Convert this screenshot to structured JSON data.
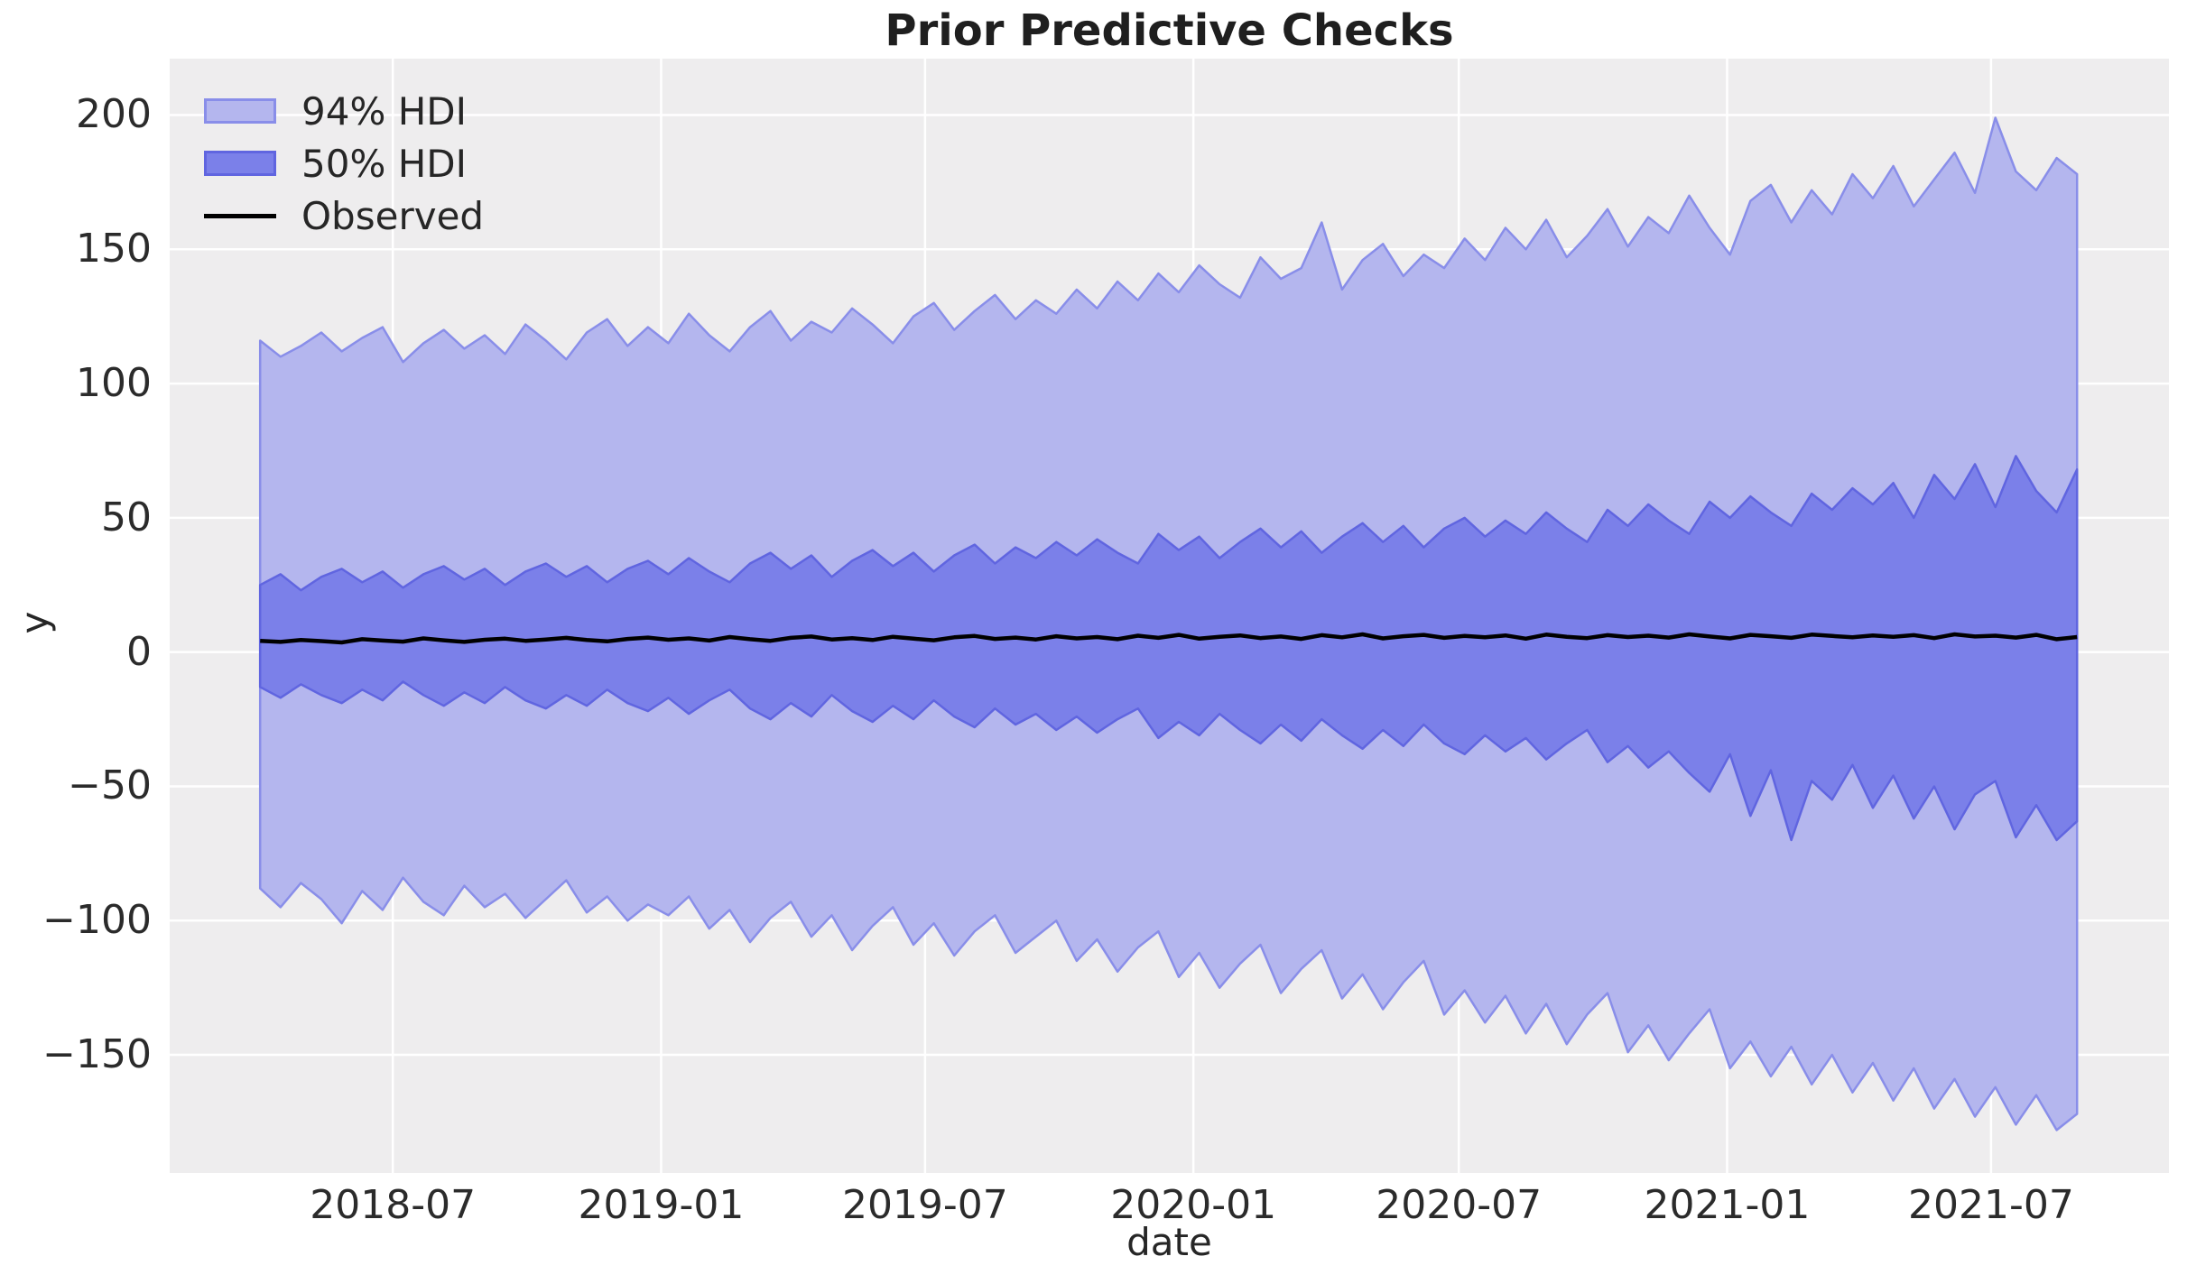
{
  "chart_data": {
    "type": "area",
    "title": "Prior Predictive Checks",
    "xlabel": "date",
    "ylabel": "y",
    "x_start_date": "2018-04-01",
    "x_step_days": 14,
    "x_days": [
      0,
      14,
      28,
      42,
      56,
      70,
      84,
      98,
      112,
      126,
      140,
      154,
      168,
      182,
      196,
      210,
      224,
      238,
      252,
      266,
      280,
      294,
      308,
      322,
      336,
      350,
      364,
      378,
      392,
      406,
      420,
      434,
      448,
      462,
      476,
      490,
      504,
      518,
      532,
      546,
      560,
      574,
      588,
      602,
      616,
      630,
      644,
      658,
      672,
      686,
      700,
      714,
      728,
      742,
      756,
      770,
      784,
      798,
      812,
      826,
      840,
      854,
      868,
      882,
      896,
      910,
      924,
      938,
      952,
      966,
      980,
      994,
      1008,
      1022,
      1036,
      1050,
      1064,
      1078,
      1092,
      1106,
      1120,
      1134,
      1148,
      1162,
      1176,
      1190,
      1204,
      1218,
      1232,
      1246
    ],
    "xlim_days": [
      -62,
      1309
    ],
    "ylim": [
      -194,
      221
    ],
    "grid": true,
    "legend_position": "upper left",
    "x_ticks": [
      {
        "label": "2018-07",
        "day": 91
      },
      {
        "label": "2019-01",
        "day": 275
      },
      {
        "label": "2019-07",
        "day": 456
      },
      {
        "label": "2020-01",
        "day": 640
      },
      {
        "label": "2020-07",
        "day": 822
      },
      {
        "label": "2021-01",
        "day": 1006
      },
      {
        "label": "2021-07",
        "day": 1187
      }
    ],
    "y_ticks": [
      {
        "label": "200",
        "value": 200
      },
      {
        "label": "150",
        "value": 150
      },
      {
        "label": "100",
        "value": 100
      },
      {
        "label": "50",
        "value": 50
      },
      {
        "label": "0",
        "value": 0
      },
      {
        "label": "−50",
        "value": -50
      },
      {
        "label": "−100",
        "value": -100
      },
      {
        "label": "−150",
        "value": -150
      }
    ],
    "series": [
      {
        "name": "94% HDI",
        "kind": "band",
        "fill": "#b4b6ee",
        "edge": "#898ee9",
        "upper": [
          116,
          110,
          114,
          119,
          112,
          117,
          121,
          108,
          115,
          120,
          113,
          118,
          111,
          122,
          116,
          109,
          119,
          124,
          114,
          121,
          115,
          126,
          118,
          112,
          121,
          127,
          116,
          123,
          119,
          128,
          122,
          115,
          125,
          130,
          120,
          127,
          133,
          124,
          131,
          126,
          135,
          128,
          138,
          131,
          141,
          134,
          144,
          137,
          132,
          147,
          139,
          143,
          160,
          135,
          146,
          152,
          140,
          148,
          143,
          154,
          146,
          158,
          150,
          161,
          147,
          155,
          165,
          151,
          162,
          156,
          170,
          158,
          148,
          168,
          174,
          160,
          172,
          163,
          178,
          169,
          181,
          166,
          176,
          186,
          171,
          199,
          179,
          172,
          184,
          178
        ],
        "lower": [
          -88,
          -95,
          -86,
          -92,
          -101,
          -89,
          -96,
          -84,
          -93,
          -98,
          -87,
          -95,
          -90,
          -99,
          -92,
          -85,
          -97,
          -91,
          -100,
          -94,
          -98,
          -91,
          -103,
          -96,
          -108,
          -99,
          -93,
          -106,
          -98,
          -111,
          -102,
          -95,
          -109,
          -101,
          -113,
          -104,
          -98,
          -112,
          -106,
          -100,
          -115,
          -107,
          -119,
          -110,
          -104,
          -121,
          -112,
          -125,
          -116,
          -109,
          -127,
          -118,
          -111,
          -129,
          -120,
          -133,
          -123,
          -115,
          -135,
          -126,
          -138,
          -128,
          -142,
          -131,
          -146,
          -135,
          -127,
          -149,
          -139,
          -152,
          -142,
          -133,
          -155,
          -145,
          -158,
          -147,
          -161,
          -150,
          -164,
          -153,
          -167,
          -155,
          -170,
          -159,
          -173,
          -162,
          -176,
          -165,
          -178,
          -172
        ]
      },
      {
        "name": "50% HDI",
        "kind": "band",
        "fill": "#7b80e9",
        "edge": "#6065e0",
        "upper": [
          25,
          29,
          23,
          28,
          31,
          26,
          30,
          24,
          29,
          32,
          27,
          31,
          25,
          30,
          33,
          28,
          32,
          26,
          31,
          34,
          29,
          35,
          30,
          26,
          33,
          37,
          31,
          36,
          28,
          34,
          38,
          32,
          37,
          30,
          36,
          40,
          33,
          39,
          35,
          41,
          36,
          42,
          37,
          33,
          44,
          38,
          43,
          35,
          41,
          46,
          39,
          45,
          37,
          43,
          48,
          41,
          47,
          39,
          46,
          50,
          43,
          49,
          44,
          52,
          46,
          41,
          53,
          47,
          55,
          49,
          44,
          56,
          50,
          58,
          52,
          47,
          59,
          53,
          61,
          55,
          63,
          50,
          66,
          57,
          70,
          54,
          73,
          60,
          52,
          68
        ],
        "lower": [
          -13,
          -17,
          -12,
          -16,
          -19,
          -14,
          -18,
          -11,
          -16,
          -20,
          -15,
          -19,
          -13,
          -18,
          -21,
          -16,
          -20,
          -14,
          -19,
          -22,
          -17,
          -23,
          -18,
          -14,
          -21,
          -25,
          -19,
          -24,
          -16,
          -22,
          -26,
          -20,
          -25,
          -18,
          -24,
          -28,
          -21,
          -27,
          -23,
          -29,
          -24,
          -30,
          -25,
          -21,
          -32,
          -26,
          -31,
          -23,
          -29,
          -34,
          -27,
          -33,
          -25,
          -31,
          -36,
          -29,
          -35,
          -27,
          -34,
          -38,
          -31,
          -37,
          -32,
          -40,
          -34,
          -29,
          -41,
          -35,
          -43,
          -37,
          -45,
          -52,
          -38,
          -61,
          -44,
          -70,
          -48,
          -55,
          -42,
          -58,
          -46,
          -62,
          -50,
          -66,
          -53,
          -48,
          -69,
          -57,
          -70,
          -63
        ]
      },
      {
        "name": "Observed",
        "kind": "line",
        "color": "#000000",
        "values": [
          4.2,
          3.8,
          4.5,
          4.1,
          3.6,
          4.8,
          4.3,
          3.9,
          5.1,
          4.4,
          3.8,
          4.6,
          5.0,
          4.2,
          4.7,
          5.3,
          4.5,
          4.0,
          4.9,
          5.4,
          4.6,
          5.1,
          4.3,
          5.6,
          4.8,
          4.2,
          5.3,
          5.8,
          4.7,
          5.2,
          4.5,
          5.7,
          5.0,
          4.4,
          5.5,
          6.0,
          4.9,
          5.4,
          4.7,
          5.9,
          5.1,
          5.6,
          4.8,
          6.1,
          5.3,
          6.4,
          5.0,
          5.7,
          6.2,
          5.2,
          5.8,
          4.9,
          6.3,
          5.5,
          6.6,
          5.1,
          5.9,
          6.4,
          5.3,
          6.0,
          5.5,
          6.2,
          5.0,
          6.5,
          5.7,
          5.2,
          6.3,
          5.6,
          6.1,
          5.4,
          6.6,
          5.8,
          5.1,
          6.4,
          5.9,
          5.3,
          6.5,
          6.0,
          5.5,
          6.2,
          5.7,
          6.3,
          5.2,
          6.6,
          5.8,
          6.1,
          5.4,
          6.4,
          4.8,
          5.6
        ]
      }
    ]
  },
  "legend": {
    "entries": [
      "94% HDI",
      "50% HDI",
      "Observed"
    ]
  },
  "colors": {
    "plot_background": "#eeedee",
    "gridline": "#ffffff",
    "text": "#262626"
  }
}
